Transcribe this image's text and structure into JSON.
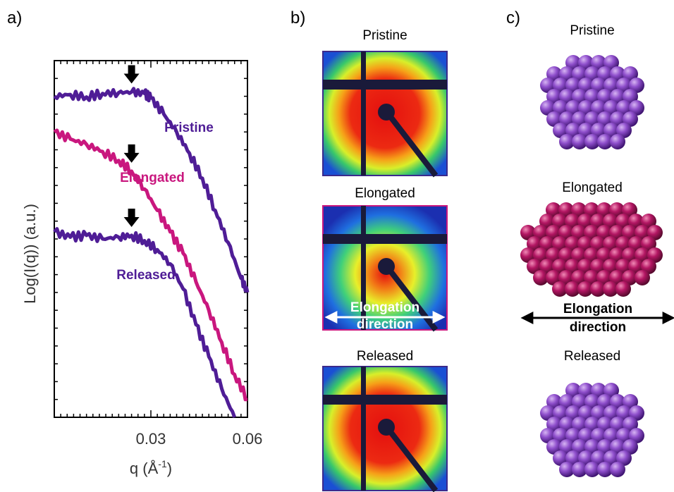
{
  "panels": {
    "a": "a)",
    "b": "b)",
    "c": "c)"
  },
  "chart_data": {
    "type": "line",
    "xlabel": "q (Å",
    "xlabel_sup": "-1",
    "xlabel_close": ")",
    "ylabel": "Log(I(q)) (a.u.)",
    "xlim": [
      0.0,
      0.06
    ],
    "x_ticks": [
      {
        "value": 0.03,
        "label": "0.03"
      },
      {
        "value": 0.06,
        "label": "0.06"
      }
    ],
    "series": [
      {
        "name": "Pristine",
        "color": "#4f1d96",
        "x": [
          0.0,
          0.005,
          0.01,
          0.015,
          0.02,
          0.024,
          0.028,
          0.03,
          0.034,
          0.038,
          0.042,
          0.046,
          0.05,
          0.054,
          0.058,
          0.06
        ],
        "y": [
          7.4,
          7.45,
          7.38,
          7.48,
          7.5,
          7.52,
          7.48,
          7.35,
          6.9,
          6.4,
          5.8,
          5.1,
          4.2,
          3.3,
          2.3,
          1.9
        ]
      },
      {
        "name": "Elongated",
        "color": "#c9177e",
        "x": [
          0.0,
          0.005,
          0.01,
          0.015,
          0.02,
          0.024,
          0.028,
          0.032,
          0.036,
          0.04,
          0.044,
          0.048,
          0.052,
          0.056,
          0.06
        ],
        "y": [
          6.4,
          6.2,
          6.05,
          5.85,
          5.6,
          5.3,
          4.8,
          4.2,
          3.6,
          3.0,
          2.2,
          1.4,
          0.5,
          -0.4,
          -1.1
        ]
      },
      {
        "name": "Released",
        "color": "#4f1d96",
        "x": [
          0.0,
          0.005,
          0.01,
          0.015,
          0.02,
          0.024,
          0.028,
          0.032,
          0.036,
          0.04,
          0.044,
          0.048,
          0.052,
          0.056
        ],
        "y": [
          3.6,
          3.45,
          3.5,
          3.4,
          3.45,
          3.5,
          3.35,
          3.1,
          2.7,
          2.0,
          1.0,
          0.1,
          -0.8,
          -1.6
        ]
      }
    ],
    "peak_markers": [
      {
        "series": "Pristine",
        "x": 0.024
      },
      {
        "series": "Elongated",
        "x": 0.024
      },
      {
        "series": "Released",
        "x": 0.024
      }
    ]
  },
  "saxs": [
    {
      "caption": "Pristine",
      "elongated": false,
      "border": "#3b2a8c"
    },
    {
      "caption": "Elongated",
      "elongated": true,
      "border": "#c9177e",
      "arrow_label_1": "Elongation",
      "arrow_label_2": "direction"
    },
    {
      "caption": "Released",
      "elongated": false,
      "border": "#3b2a8c"
    }
  ],
  "models": [
    {
      "caption": "Pristine",
      "color": "#7b3fb5",
      "shape": "sphere"
    },
    {
      "caption": "Elongated",
      "color": "#b01560",
      "shape": "ellipsoid",
      "arrow_label_1": "Elongation",
      "arrow_label_2": "direction"
    },
    {
      "caption": "Released",
      "color": "#7b3fb5",
      "shape": "sphere"
    }
  ]
}
